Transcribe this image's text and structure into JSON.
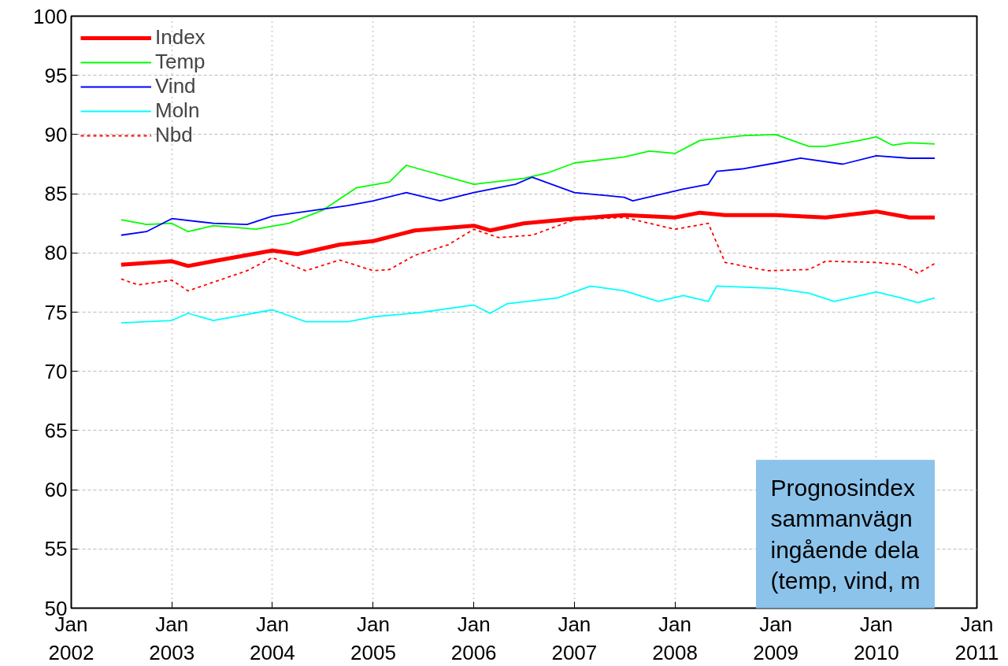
{
  "chart_data": {
    "type": "line",
    "xlim": [
      "2002-01",
      "2011-01"
    ],
    "xticks": [
      {
        "value": "2002-01",
        "label": "Jan\n2002"
      },
      {
        "value": "2003-01",
        "label": "Jan\n2003"
      },
      {
        "value": "2004-01",
        "label": "Jan\n2004"
      },
      {
        "value": "2005-01",
        "label": "Jan\n2005"
      },
      {
        "value": "2006-01",
        "label": "Jan\n2006"
      },
      {
        "value": "2007-01",
        "label": "Jan\n2007"
      },
      {
        "value": "2008-01",
        "label": "Jan\n2008"
      },
      {
        "value": "2009-01",
        "label": "Jan\n2009"
      },
      {
        "value": "2010-01",
        "label": "Jan\n2010"
      },
      {
        "value": "2011-01",
        "label": "Jan\n2011"
      }
    ],
    "ylim": [
      50,
      100
    ],
    "yticks": [
      50,
      55,
      60,
      65,
      70,
      75,
      80,
      85,
      90,
      95,
      100
    ],
    "grid": true,
    "legend": "top left",
    "marker": "none",
    "annotations": [
      "Prognosindex\nsammanvägn\ningående dela\n(temp, vind, m"
    ],
    "series": [
      {
        "name": "Index",
        "color": "#ff0000",
        "line_style": "solid",
        "x": [
          "2002-07",
          "2003-01",
          "2003-03",
          "2003-06",
          "2004-01",
          "2004-04",
          "2004-09",
          "2005-01",
          "2005-06",
          "2006-01",
          "2006-03",
          "2006-07",
          "2007-01",
          "2007-07",
          "2008-01",
          "2008-04",
          "2008-07",
          "2009-01",
          "2009-07",
          "2010-01",
          "2010-05",
          "2010-08"
        ],
        "values": [
          79.0,
          79.3,
          78.9,
          79.3,
          80.2,
          79.9,
          80.7,
          81.0,
          81.9,
          82.3,
          81.9,
          82.5,
          82.9,
          83.2,
          83.0,
          83.4,
          83.2,
          83.2,
          83.0,
          83.5,
          83.0,
          83.0
        ]
      },
      {
        "name": "Temp",
        "color": "#00ff00",
        "line_style": "solid",
        "x": [
          "2002-07",
          "2002-10",
          "2003-01",
          "2003-03",
          "2003-06",
          "2003-11",
          "2004-03",
          "2004-07",
          "2004-11",
          "2005-03",
          "2005-05",
          "2006-01",
          "2006-07",
          "2006-10",
          "2007-01",
          "2007-07",
          "2007-10",
          "2008-01",
          "2008-04",
          "2008-09",
          "2009-01",
          "2009-05",
          "2009-07",
          "2009-11",
          "2010-01",
          "2010-03",
          "2010-05",
          "2010-08"
        ],
        "values": [
          82.8,
          82.4,
          82.5,
          81.8,
          82.3,
          82.0,
          82.5,
          83.6,
          85.5,
          86.0,
          87.4,
          85.8,
          86.3,
          86.8,
          87.6,
          88.1,
          88.6,
          88.4,
          89.5,
          89.9,
          90.0,
          89.0,
          89.0,
          89.5,
          89.8,
          89.1,
          89.3,
          89.2
        ]
      },
      {
        "name": "Vind",
        "color": "#0000ff",
        "line_style": "solid",
        "x": [
          "2002-07",
          "2002-10",
          "2003-01",
          "2003-06",
          "2003-10",
          "2004-01",
          "2004-06",
          "2004-10",
          "2005-01",
          "2005-05",
          "2005-09",
          "2006-01",
          "2006-06",
          "2006-08",
          "2007-01",
          "2007-07",
          "2007-08",
          "2008-02",
          "2008-05",
          "2008-06",
          "2008-09",
          "2009-01",
          "2009-04",
          "2009-09",
          "2010-01",
          "2010-05",
          "2010-08"
        ],
        "values": [
          81.5,
          81.8,
          82.9,
          82.5,
          82.4,
          83.1,
          83.6,
          84.0,
          84.4,
          85.1,
          84.4,
          85.1,
          85.8,
          86.4,
          85.1,
          84.7,
          84.4,
          85.4,
          85.8,
          86.9,
          87.1,
          87.6,
          88.0,
          87.5,
          88.2,
          88.0,
          88.0
        ]
      },
      {
        "name": "Moln",
        "color": "#00ffff",
        "line_style": "solid",
        "x": [
          "2002-07",
          "2003-01",
          "2003-03",
          "2003-06",
          "2004-01",
          "2004-05",
          "2004-10",
          "2005-01",
          "2005-07",
          "2006-01",
          "2006-03",
          "2006-05",
          "2006-11",
          "2007-03",
          "2007-07",
          "2007-11",
          "2008-02",
          "2008-05",
          "2008-06",
          "2009-01",
          "2009-05",
          "2009-08",
          "2010-01",
          "2010-04",
          "2010-06",
          "2010-08"
        ],
        "values": [
          74.1,
          74.3,
          74.9,
          74.3,
          75.2,
          74.2,
          74.2,
          74.6,
          75.0,
          75.6,
          74.9,
          75.7,
          76.2,
          77.2,
          76.8,
          75.9,
          76.4,
          75.9,
          77.2,
          77.0,
          76.6,
          75.9,
          76.7,
          76.2,
          75.8,
          76.2
        ]
      },
      {
        "name": "Nbd",
        "color": "#ff0000",
        "line_style": "dashed",
        "x": [
          "2002-07",
          "2002-09",
          "2003-01",
          "2003-03",
          "2003-10",
          "2004-01",
          "2004-05",
          "2004-09",
          "2005-01",
          "2005-03",
          "2005-06",
          "2005-10",
          "2006-01",
          "2006-04",
          "2006-08",
          "2007-01",
          "2007-07",
          "2008-01",
          "2008-05",
          "2008-07",
          "2008-12",
          "2009-05",
          "2009-07",
          "2010-01",
          "2010-04",
          "2010-06",
          "2010-08"
        ],
        "values": [
          77.8,
          77.3,
          77.7,
          76.8,
          78.5,
          79.6,
          78.5,
          79.4,
          78.5,
          78.6,
          79.8,
          80.7,
          82.0,
          81.3,
          81.5,
          82.8,
          83.0,
          82.0,
          82.5,
          79.2,
          78.5,
          78.6,
          79.3,
          79.2,
          79.0,
          78.3,
          79.1
        ]
      }
    ]
  }
}
